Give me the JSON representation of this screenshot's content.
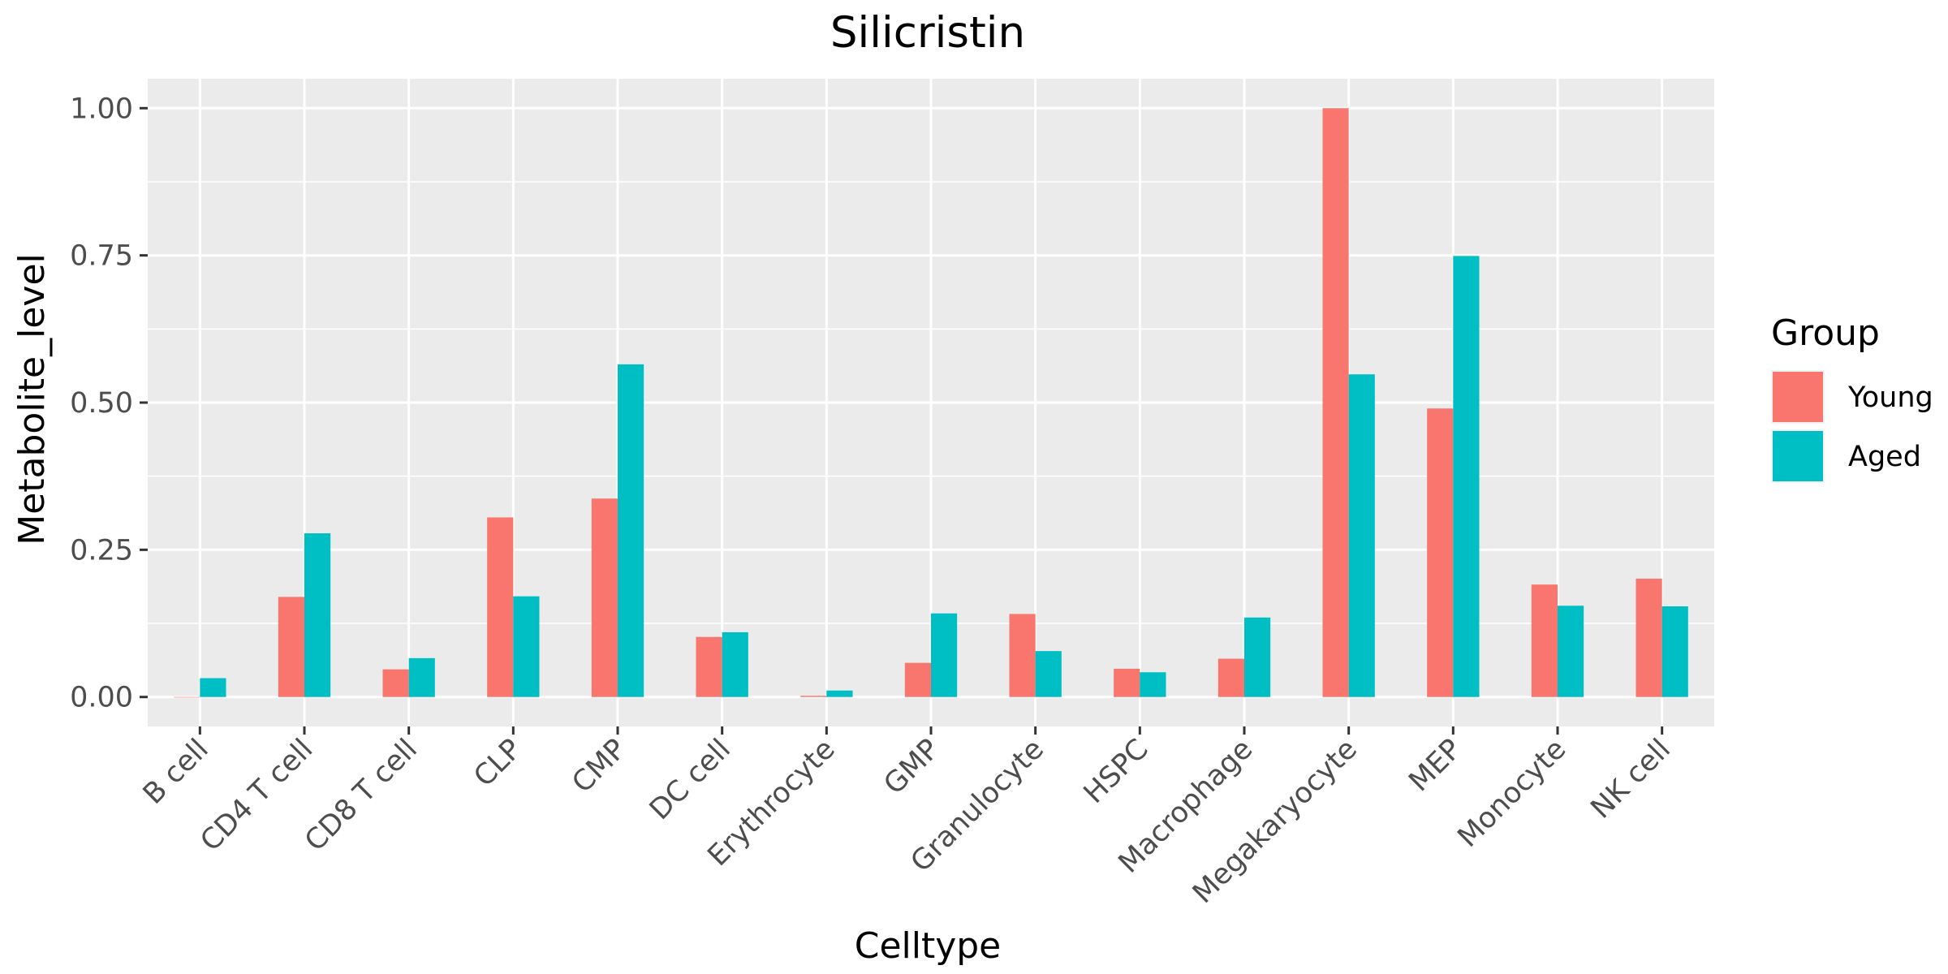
{
  "chart_data": {
    "type": "bar",
    "title": "Silicristin",
    "xlabel": "Celltype",
    "ylabel": "Metabolite_level",
    "categories": [
      "B cell",
      "CD4 T cell",
      "CD8 T cell",
      "CLP",
      "CMP",
      "DC cell",
      "Erythrocyte",
      "GMP",
      "Granulocyte",
      "HSPC",
      "Macrophage",
      "Megakaryocyte",
      "MEP",
      "Monocyte",
      "NK cell"
    ],
    "series": [
      {
        "name": "Young",
        "color": "#F8766D",
        "values": [
          0.0,
          0.17,
          0.047,
          0.305,
          0.337,
          0.102,
          0.002,
          0.058,
          0.141,
          0.048,
          0.065,
          1.0,
          0.49,
          0.191,
          0.201
        ]
      },
      {
        "name": "Aged",
        "color": "#00BFC4",
        "values": [
          0.032,
          0.278,
          0.066,
          0.171,
          0.565,
          0.11,
          0.011,
          0.142,
          0.078,
          0.042,
          0.135,
          0.548,
          0.749,
          0.155,
          0.154
        ]
      }
    ],
    "ylim": [
      -0.05,
      1.05
    ],
    "yticks": [
      0.0,
      0.25,
      0.5,
      0.75,
      1.0
    ],
    "ytick_labels": [
      "0.00",
      "0.25",
      "0.50",
      "0.75",
      "1.00"
    ],
    "legend": {
      "title": "Group",
      "position": "right"
    },
    "grid": true
  }
}
